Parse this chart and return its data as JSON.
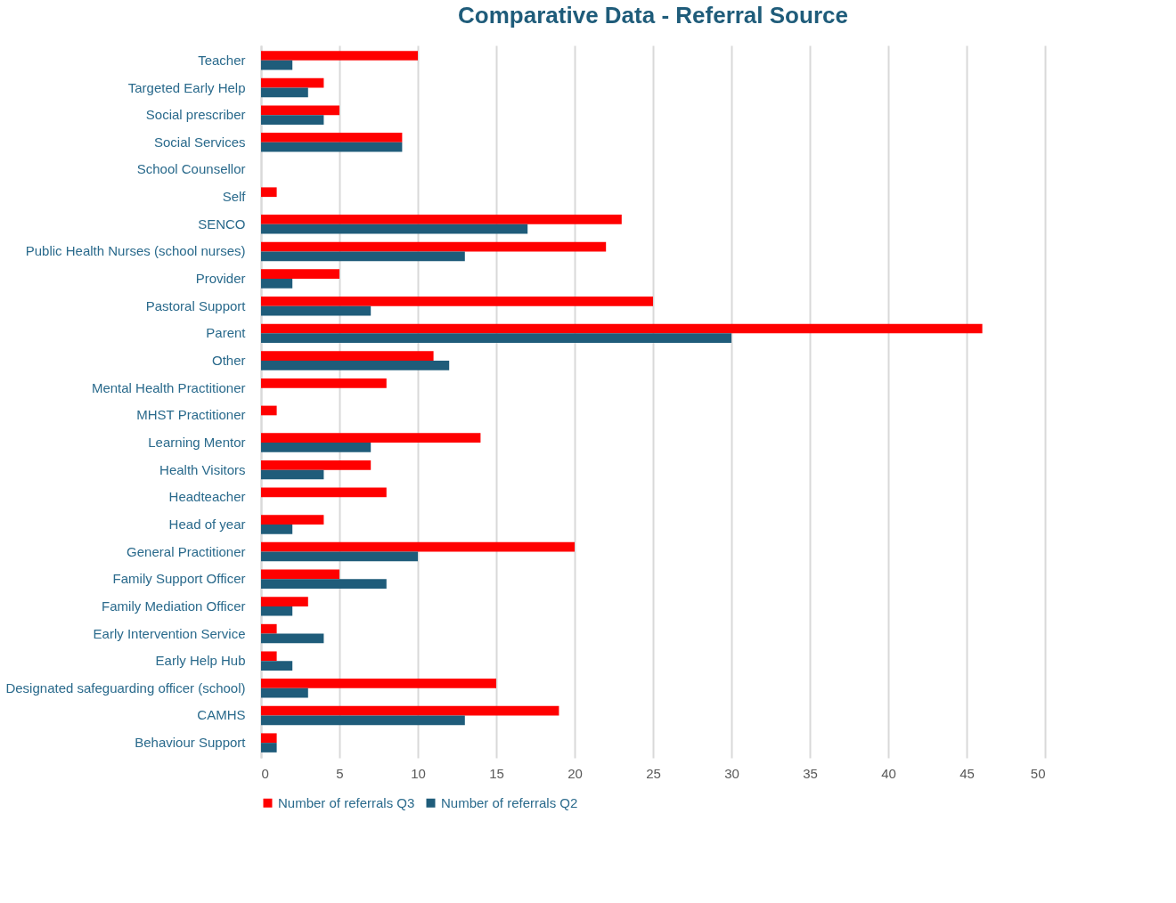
{
  "chart_data": {
    "type": "bar",
    "orientation": "horizontal",
    "title": "Comparative Data - Referral Source",
    "categories": [
      "Teacher",
      "Targeted Early Help",
      "Social prescriber",
      "Social Services",
      "School Counsellor",
      "Self",
      "SENCO",
      "Public Health Nurses (school nurses)",
      "Provider",
      "Pastoral Support",
      "Parent",
      "Other",
      "Mental Health Practitioner",
      "MHST Practitioner",
      "Learning Mentor",
      "Health Visitors",
      "Headteacher",
      "Head of year",
      "General Practitioner",
      "Family Support Officer",
      "Family Mediation Officer",
      "Early Intervention Service",
      "Early Help Hub",
      "Designated safeguarding officer (school)",
      "CAMHS",
      "Behaviour Support"
    ],
    "series": [
      {
        "name": "Number of referrals Q3",
        "color": "#ff0000",
        "values": [
          10,
          4,
          5,
          9,
          0,
          1,
          23,
          22,
          5,
          25,
          46,
          11,
          8,
          1,
          14,
          7,
          8,
          4,
          20,
          5,
          3,
          1,
          1,
          15,
          19,
          1
        ]
      },
      {
        "name": "Number of referrals Q2",
        "color": "#1f5c7a",
        "values": [
          2,
          3,
          4,
          9,
          0,
          0,
          17,
          13,
          2,
          7,
          30,
          12,
          0,
          0,
          7,
          4,
          0,
          2,
          10,
          8,
          2,
          4,
          2,
          3,
          13,
          1
        ]
      }
    ],
    "xlim": [
      0,
      50
    ],
    "xticks": [
      0,
      5,
      10,
      15,
      20,
      25,
      30,
      35,
      40,
      45,
      50
    ],
    "grid": "x",
    "legend": "bottom"
  }
}
